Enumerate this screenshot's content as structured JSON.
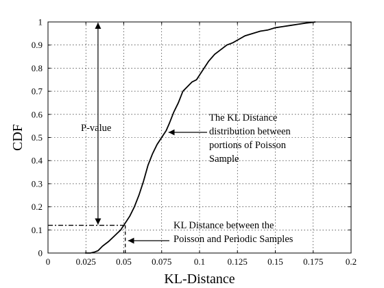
{
  "chart_data": {
    "type": "line",
    "xlabel": "KL-Distance",
    "ylabel": "CDF",
    "xlim": [
      0,
      0.2
    ],
    "ylim": [
      0,
      1
    ],
    "grid": true,
    "x_ticks": [
      "0",
      "0.025",
      "0.05",
      "0.075",
      "0.1",
      "0.125",
      "0.15",
      "0.175",
      "0.2"
    ],
    "y_ticks": [
      "0",
      "0.1",
      "0.2",
      "0.3",
      "0.4",
      "0.5",
      "0.6",
      "0.7",
      "0.8",
      "0.9",
      "1"
    ],
    "series": [
      {
        "x": [
          0.0245,
          0.028,
          0.031,
          0.033,
          0.036,
          0.04,
          0.044,
          0.048,
          0.051,
          0.054,
          0.057,
          0.06,
          0.063,
          0.066,
          0.069,
          0.072,
          0.075,
          0.078,
          0.08,
          0.083,
          0.086,
          0.089,
          0.092,
          0.095,
          0.098,
          0.1,
          0.103,
          0.106,
          0.11,
          0.114,
          0.118,
          0.122,
          0.126,
          0.13,
          0.135,
          0.14,
          0.145,
          0.15,
          0.155,
          0.16,
          0.165,
          0.17,
          0.174,
          0.1765
        ],
        "y": [
          0.0,
          0.0,
          0.005,
          0.01,
          0.03,
          0.05,
          0.075,
          0.1,
          0.13,
          0.16,
          0.2,
          0.25,
          0.31,
          0.38,
          0.43,
          0.47,
          0.5,
          0.53,
          0.56,
          0.61,
          0.65,
          0.7,
          0.72,
          0.74,
          0.75,
          0.77,
          0.8,
          0.83,
          0.86,
          0.88,
          0.9,
          0.91,
          0.925,
          0.94,
          0.95,
          0.96,
          0.965,
          0.975,
          0.98,
          0.985,
          0.99,
          0.995,
          0.998,
          1.0
        ]
      }
    ],
    "marker": {
      "x": 0.051,
      "y": 0.12
    },
    "annotations": {
      "pvalue": "P-value",
      "kl_dist_lines": [
        "The KL Distance",
        "distribution between",
        "portions of Poisson",
        "Sample"
      ],
      "kl_between_lines": [
        "KL Distance between the",
        "Poisson and Periodic Samples"
      ]
    }
  }
}
